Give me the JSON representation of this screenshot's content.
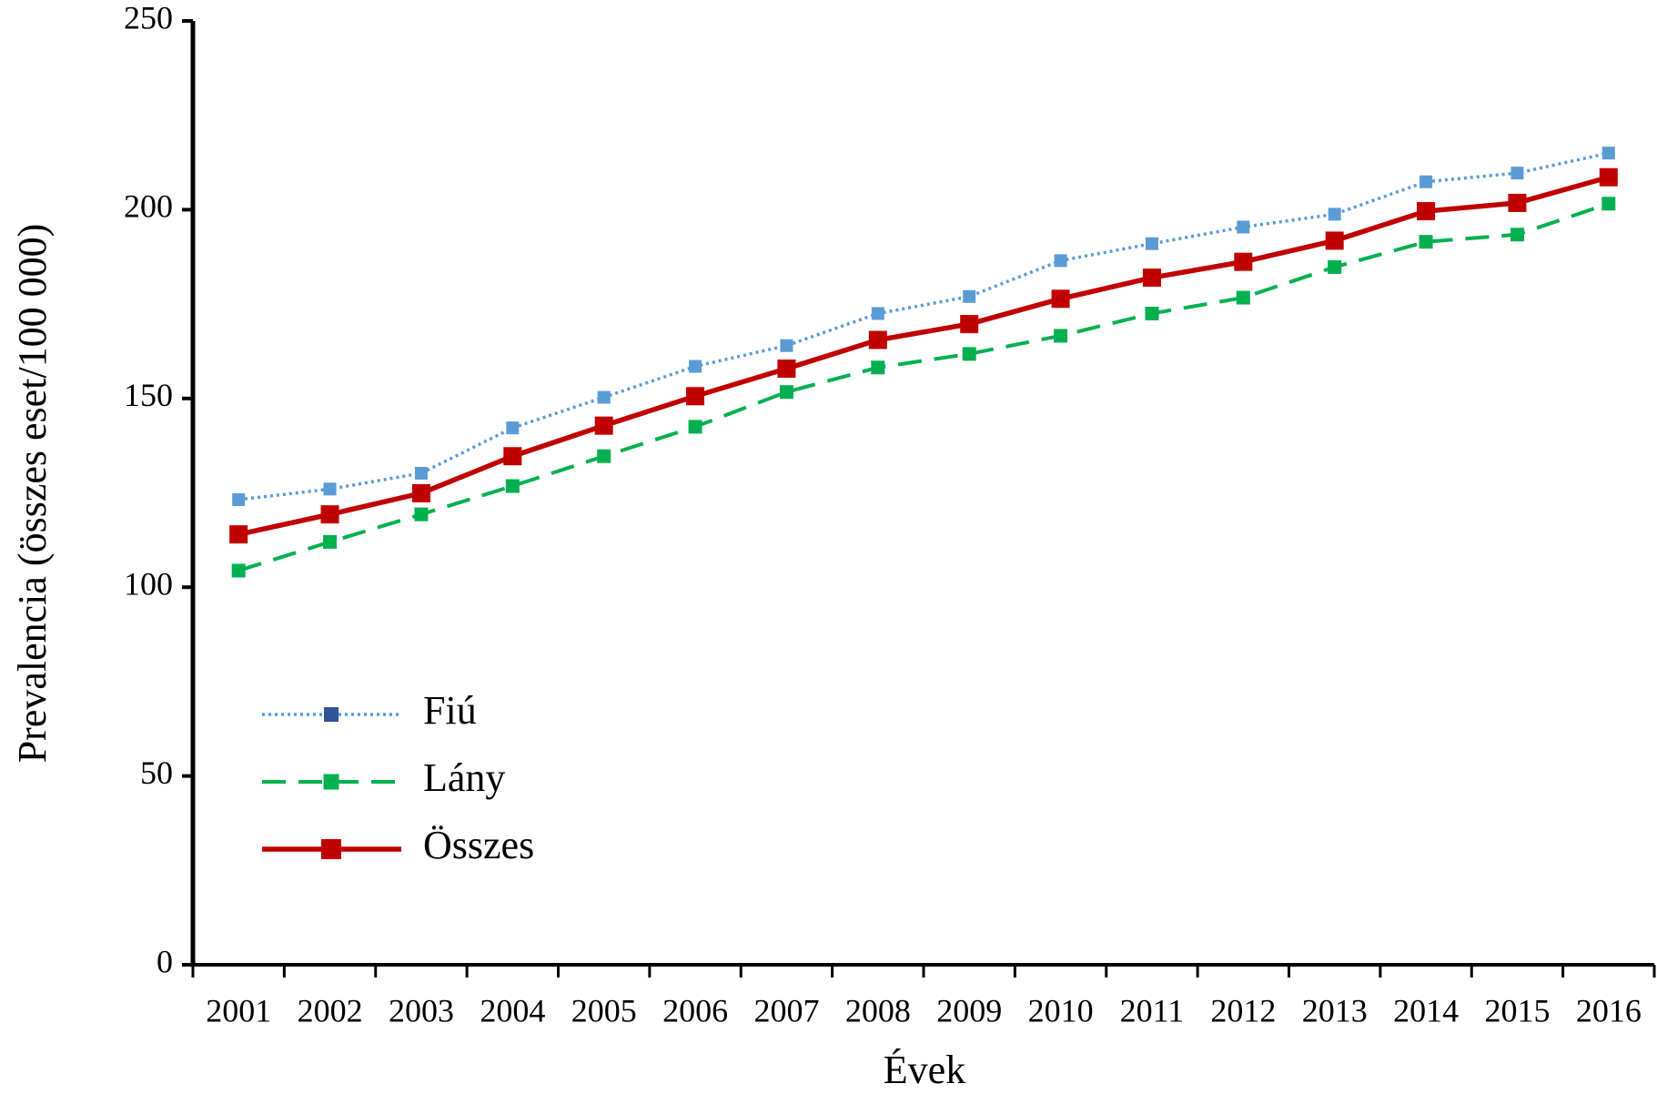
{
  "chart_data": {
    "type": "line",
    "x_label": "Évek",
    "y_label": "Prevalencia (összes eset/100 000)",
    "categories": [
      "2001",
      "2002",
      "2003",
      "2004",
      "2005",
      "2006",
      "2007",
      "2008",
      "2009",
      "2010",
      "2011",
      "2012",
      "2013",
      "2014",
      "2015",
      "2016"
    ],
    "series": [
      {
        "name": "Fiú",
        "color": "#5b9bd5",
        "legend_marker_color": "#2f5597",
        "line_style": "dotted",
        "values": [
          123.2,
          126,
          130.2,
          142.2,
          150.3,
          158.5,
          164,
          172.5,
          177,
          186.5,
          191,
          195.4,
          198.8,
          207.4,
          209.7,
          215
        ]
      },
      {
        "name": "Lány",
        "color": "#00b050",
        "legend_marker_color": "#00b050",
        "line_style": "dashed",
        "values": [
          104.4,
          112,
          119.3,
          126.8,
          134.7,
          142.5,
          151.7,
          158.2,
          161.8,
          166.6,
          172.5,
          176.7,
          184.8,
          191.5,
          193.4,
          201.6
        ]
      },
      {
        "name": "Összes",
        "color": "#c00000",
        "legend_marker_color": "#c00000",
        "line_style": "solid",
        "values": [
          114,
          119.3,
          124.9,
          134.7,
          142.8,
          150.6,
          157.9,
          165.5,
          169.7,
          176.4,
          182,
          186.2,
          191.8,
          199.6,
          201.8,
          208.6
        ]
      }
    ],
    "ylim": [
      0,
      250
    ],
    "yticks": [
      0,
      50,
      100,
      150,
      200,
      250
    ],
    "grid": false,
    "legend_position": "lower left"
  }
}
